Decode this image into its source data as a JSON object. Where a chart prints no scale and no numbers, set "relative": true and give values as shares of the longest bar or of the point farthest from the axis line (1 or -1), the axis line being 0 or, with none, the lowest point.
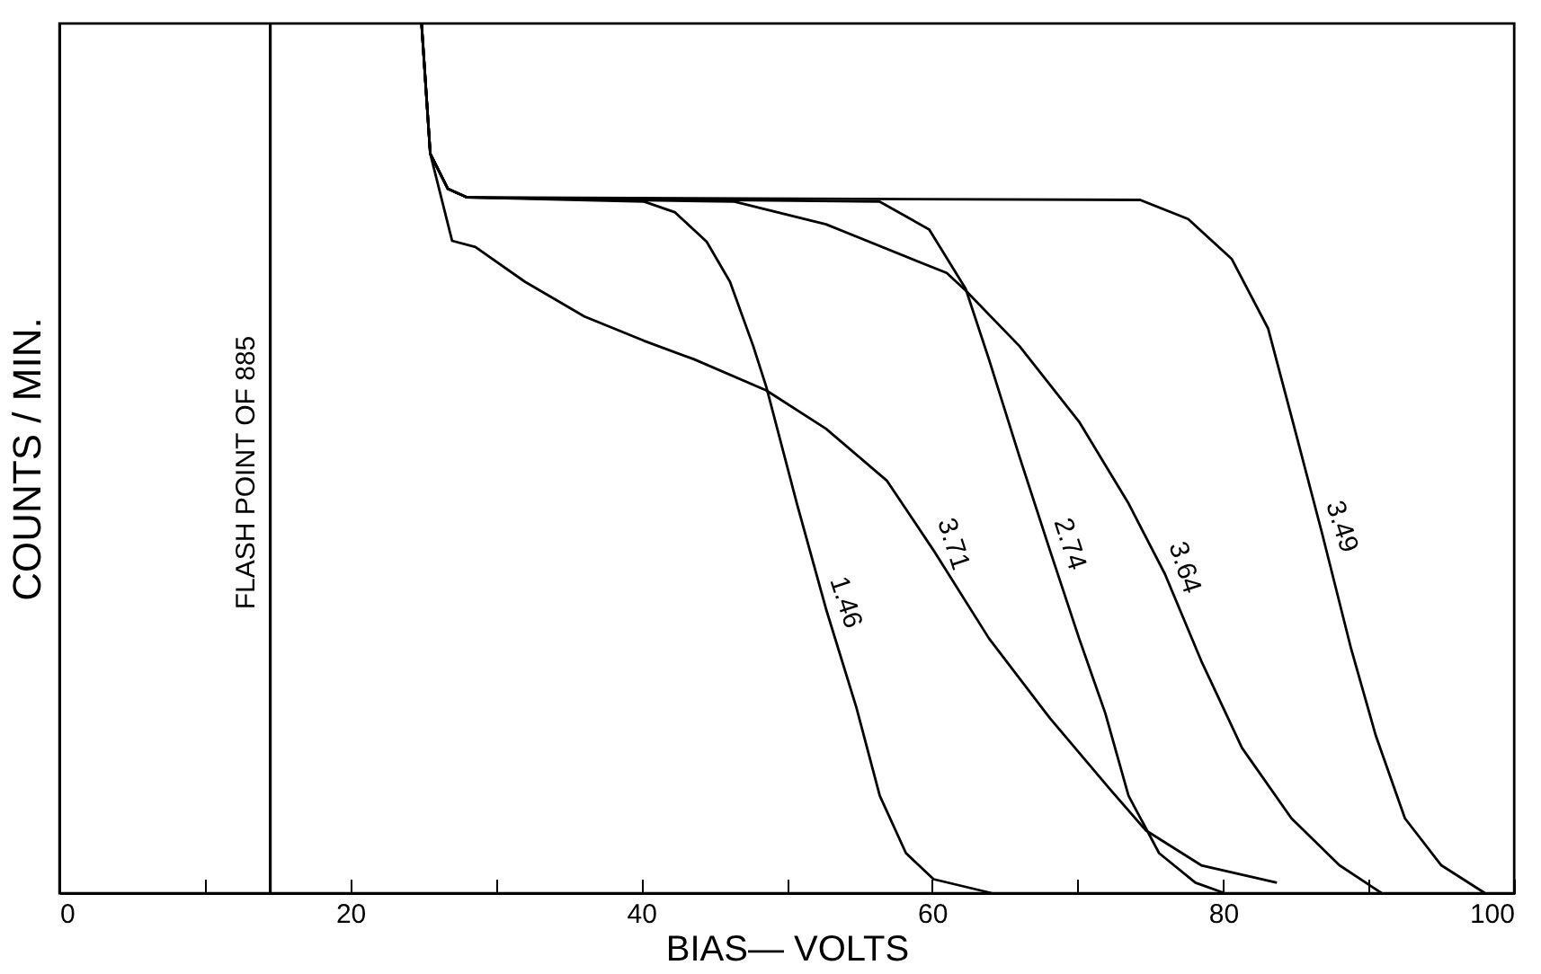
{
  "chart_data": {
    "type": "line",
    "relative": true,
    "xlabel": "BIAS— VOLTS",
    "ylabel": "COUNTS / MIN.",
    "xlim": [
      0,
      100
    ],
    "xticks": [
      0,
      {
        "value": 10,
        "label": null
      },
      20,
      {
        "value": 30,
        "label": null
      },
      40,
      {
        "value": 50,
        "label": null
      },
      60,
      {
        "value": 70,
        "label": null
      },
      80,
      {
        "value": 90,
        "label": null
      },
      100
    ],
    "grid": false,
    "legend": false,
    "marker": "none",
    "line_style": "solid",
    "ref_lines": [
      {
        "axis": "x",
        "value": 14.5,
        "label": "FLASH POINT OF 885",
        "color": "#000000"
      }
    ],
    "series": [
      {
        "name": "1.46",
        "color": "#000000",
        "x": [
          24.9,
          25.5,
          26.7,
          28,
          40.2,
          42.3,
          44.5,
          46.1,
          47.7,
          48.6,
          50.7,
          52.7,
          54.8,
          56.4,
          58.2,
          60.1,
          64.1
        ],
        "values": [
          1,
          0.85,
          0.81,
          0.8,
          0.795,
          0.783,
          0.749,
          0.703,
          0.629,
          0.582,
          0.448,
          0.327,
          0.213,
          0.112,
          0.046,
          0.016,
          0
        ]
      },
      {
        "name": "3.71",
        "color": "#000000",
        "x": [
          24.9,
          25.5,
          27,
          28.6,
          32,
          36.1,
          40.2,
          43.6,
          48.6,
          52.7,
          56.9,
          60.1,
          63.9,
          68.1,
          72.2,
          74.7,
          78.5,
          83.7
        ],
        "values": [
          1,
          0.85,
          0.75,
          0.743,
          0.703,
          0.663,
          0.635,
          0.614,
          0.578,
          0.534,
          0.474,
          0.394,
          0.293,
          0.201,
          0.12,
          0.072,
          0.032,
          0.012
        ]
      },
      {
        "name": "2.74",
        "color": "#000000",
        "x": [
          24.9,
          25.5,
          26.7,
          28,
          56.4,
          59.8,
          62.3,
          63.9,
          66,
          68.1,
          70.1,
          71.9,
          73.5,
          75.6,
          78.1,
          80.1
        ],
        "values": [
          1,
          0.85,
          0.81,
          0.8,
          0.795,
          0.763,
          0.695,
          0.614,
          0.502,
          0.394,
          0.293,
          0.207,
          0.112,
          0.046,
          0.012,
          0
        ]
      },
      {
        "name": "3.64",
        "color": "#000000",
        "x": [
          24.9,
          25.5,
          26.7,
          28,
          46.4,
          52.7,
          61,
          62.3,
          66,
          70.1,
          73.5,
          76,
          78.5,
          81.3,
          84.7,
          88,
          90.9
        ],
        "values": [
          1,
          0.85,
          0.81,
          0.8,
          0.795,
          0.769,
          0.713,
          0.693,
          0.629,
          0.542,
          0.448,
          0.367,
          0.267,
          0.167,
          0.086,
          0.032,
          0
        ]
      },
      {
        "name": "3.49",
        "color": "#000000",
        "x": [
          24.9,
          25.5,
          26.7,
          28,
          74.3,
          77.6,
          80.6,
          83.1,
          84.7,
          86.8,
          88.8,
          90.5,
          92.5,
          95,
          98
        ],
        "values": [
          1,
          0.85,
          0.81,
          0.8,
          0.797,
          0.775,
          0.729,
          0.649,
          0.548,
          0.414,
          0.281,
          0.181,
          0.086,
          0.032,
          0
        ]
      }
    ]
  }
}
